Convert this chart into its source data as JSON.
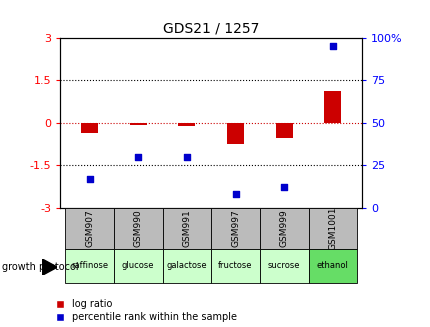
{
  "title": "GDS21 / 1257",
  "samples": [
    "GSM907",
    "GSM990",
    "GSM991",
    "GSM997",
    "GSM999",
    "GSM1001"
  ],
  "protocols": [
    "raffinose",
    "glucose",
    "galactose",
    "fructose",
    "sucrose",
    "ethanol"
  ],
  "log_ratio": [
    -0.35,
    -0.08,
    -0.12,
    -0.75,
    -0.55,
    1.1
  ],
  "percentile_rank": [
    17,
    30,
    30,
    8,
    12,
    95
  ],
  "ylim_left": [
    -3,
    3
  ],
  "ylim_right": [
    0,
    100
  ],
  "dotted_lines": [
    1.5,
    -1.5
  ],
  "bar_color": "#cc0000",
  "dot_color": "#0000cc",
  "protocol_colors": [
    "#ccffcc",
    "#ccffcc",
    "#ccffcc",
    "#ccffcc",
    "#ccffcc",
    "#66dd66"
  ],
  "sample_bg_color": "#bbbbbb",
  "legend_labels": [
    "log ratio",
    "percentile rank within the sample"
  ],
  "growth_protocol_label": "growth protocol",
  "left_yticks": [
    -3,
    -1.5,
    0,
    1.5,
    3
  ],
  "right_yticks": [
    0,
    25,
    50,
    75,
    100
  ],
  "right_ytick_labels": [
    "0",
    "25",
    "50",
    "75",
    "100%"
  ]
}
